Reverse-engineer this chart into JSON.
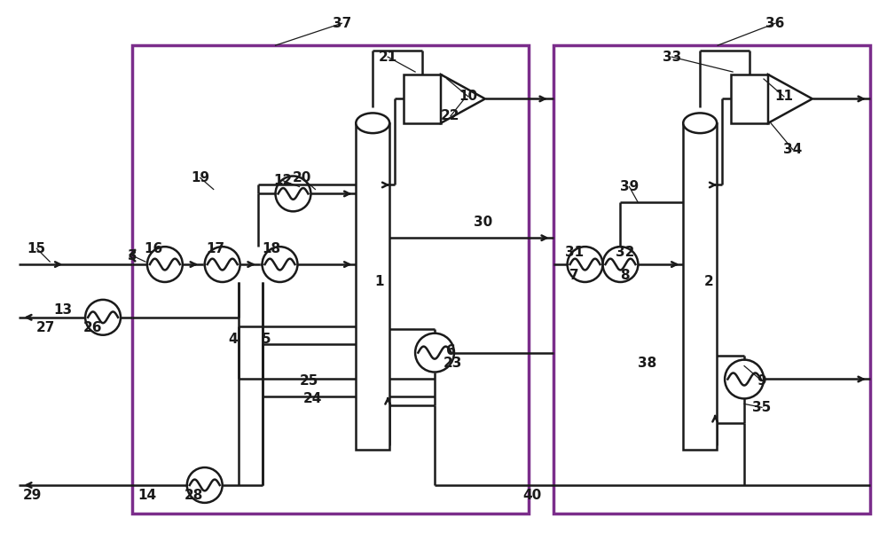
{
  "bg_color": "#ffffff",
  "lc": "#1a1a1a",
  "lw": 1.8,
  "purple": "#7b2d8b",
  "figsize": [
    10.0,
    6.28
  ],
  "dpi": 100
}
